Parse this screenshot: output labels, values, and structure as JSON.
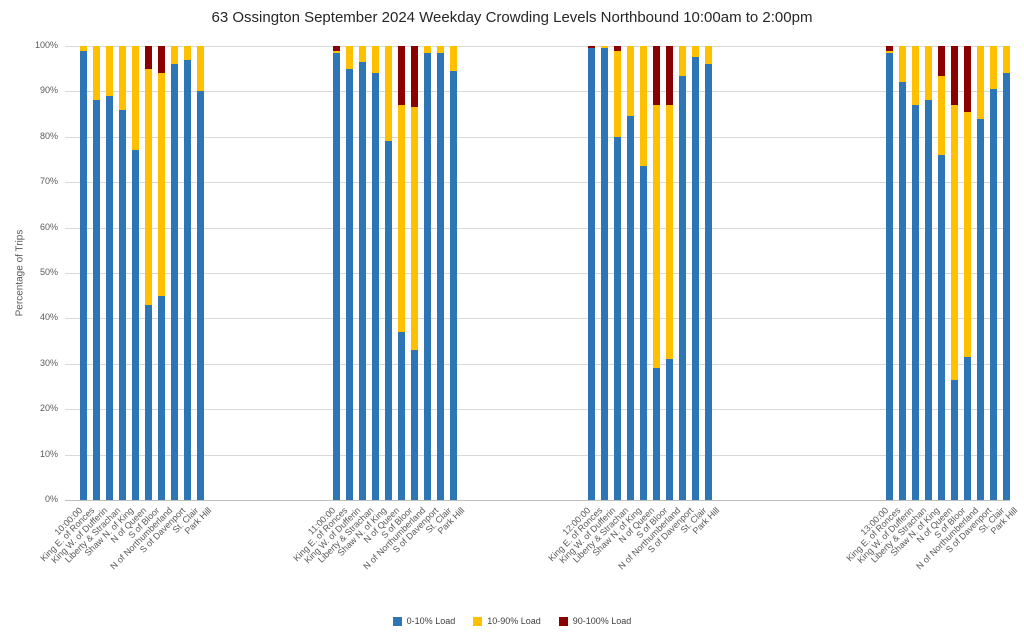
{
  "chart_data": {
    "type": "bar",
    "stacked": true,
    "title": "63 Ossington September 2024  Weekday Crowding Levels Northbound 10:00am to 2:00pm",
    "ylabel": "Percentage of Trips",
    "ylim": [
      0,
      100
    ],
    "yticks": [
      0,
      10,
      20,
      30,
      40,
      50,
      60,
      70,
      80,
      90,
      100
    ],
    "ytick_suffix": "%",
    "grid": true,
    "legend_position": "bottom",
    "group_labels": [
      "10:00:00",
      "11:00:00",
      "12:00:00",
      "13:00:00"
    ],
    "categories": [
      "King E. of Ronces",
      "King W. of Dufferin",
      "Liberty & Strachan",
      "Shaw N. of King",
      "N of Queen",
      "S of Bloor",
      "N of Northumberland",
      "S of Davenport",
      "St. Clair",
      "Park Hill"
    ],
    "series": [
      {
        "name": "0-10% Load",
        "color": "#2e75b6",
        "values": [
          [
            99,
            88,
            89,
            86,
            77,
            43,
            45,
            96,
            97,
            90
          ],
          [
            98.5,
            95,
            96.5,
            94,
            79,
            37,
            33,
            98.5,
            98.5,
            94.5
          ],
          [
            99.5,
            99.5,
            80,
            84.5,
            73.5,
            29,
            31,
            93.5,
            97.5,
            96
          ],
          [
            98.5,
            92,
            87,
            88,
            76,
            26.5,
            31.5,
            84,
            90.5,
            94
          ]
        ]
      },
      {
        "name": "10-90% Load",
        "color": "#ffc000",
        "values": [
          [
            1,
            12,
            11,
            14,
            23,
            52,
            49,
            4,
            3,
            10
          ],
          [
            0.5,
            5,
            3.5,
            6,
            21,
            50,
            53.5,
            1.5,
            1.5,
            5.5
          ],
          [
            0,
            0.5,
            19,
            15.5,
            26.5,
            58,
            56,
            6.5,
            2.5,
            4
          ],
          [
            0.5,
            8,
            13,
            12,
            17.5,
            60.5,
            54,
            16,
            9.5,
            6
          ]
        ]
      },
      {
        "name": "90-100% Load",
        "color": "#8b0000",
        "values": [
          [
            0,
            0,
            0,
            0,
            0,
            5,
            6,
            0,
            0,
            0
          ],
          [
            1,
            0,
            0,
            0,
            0,
            13,
            13.5,
            0,
            0,
            0
          ],
          [
            0.5,
            0,
            1,
            0,
            0,
            13,
            13,
            0,
            0,
            0
          ],
          [
            1,
            0,
            0,
            0,
            6.5,
            13,
            14.5,
            0,
            0,
            0
          ]
        ]
      }
    ]
  }
}
